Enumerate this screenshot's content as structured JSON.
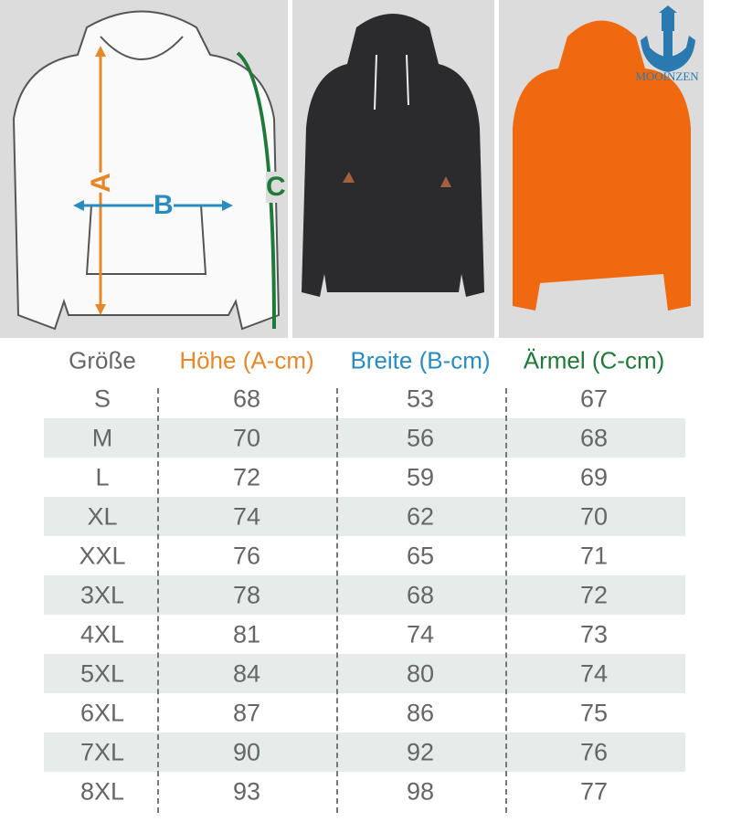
{
  "brand": {
    "logo_text": "MOOINZEN"
  },
  "diagram": {
    "label_a": "A",
    "label_b": "B",
    "label_c": "C",
    "colors": {
      "a": "#e8872a",
      "b": "#2a8bbf",
      "c": "#1f7a3a"
    }
  },
  "product_colors": {
    "dark": "#2b2b2e",
    "orange": "#f0690f"
  },
  "table": {
    "headers": [
      "Größe",
      "Höhe (A-cm)",
      "Breite (B-cm)",
      "Ärmel (C-cm)"
    ],
    "header_colors": [
      "#666666",
      "#e8872a",
      "#2a8bbf",
      "#1f7a3a"
    ],
    "rows": [
      [
        "S",
        "68",
        "53",
        "67"
      ],
      [
        "M",
        "70",
        "56",
        "68"
      ],
      [
        "L",
        "72",
        "59",
        "69"
      ],
      [
        "XL",
        "74",
        "62",
        "70"
      ],
      [
        "XXL",
        "76",
        "65",
        "71"
      ],
      [
        "3XL",
        "78",
        "68",
        "72"
      ],
      [
        "4XL",
        "81",
        "74",
        "73"
      ],
      [
        "5XL",
        "84",
        "80",
        "74"
      ],
      [
        "6XL",
        "87",
        "86",
        "75"
      ],
      [
        "7XL",
        "90",
        "92",
        "76"
      ],
      [
        "8XL",
        "93",
        "98",
        "77"
      ]
    ]
  }
}
